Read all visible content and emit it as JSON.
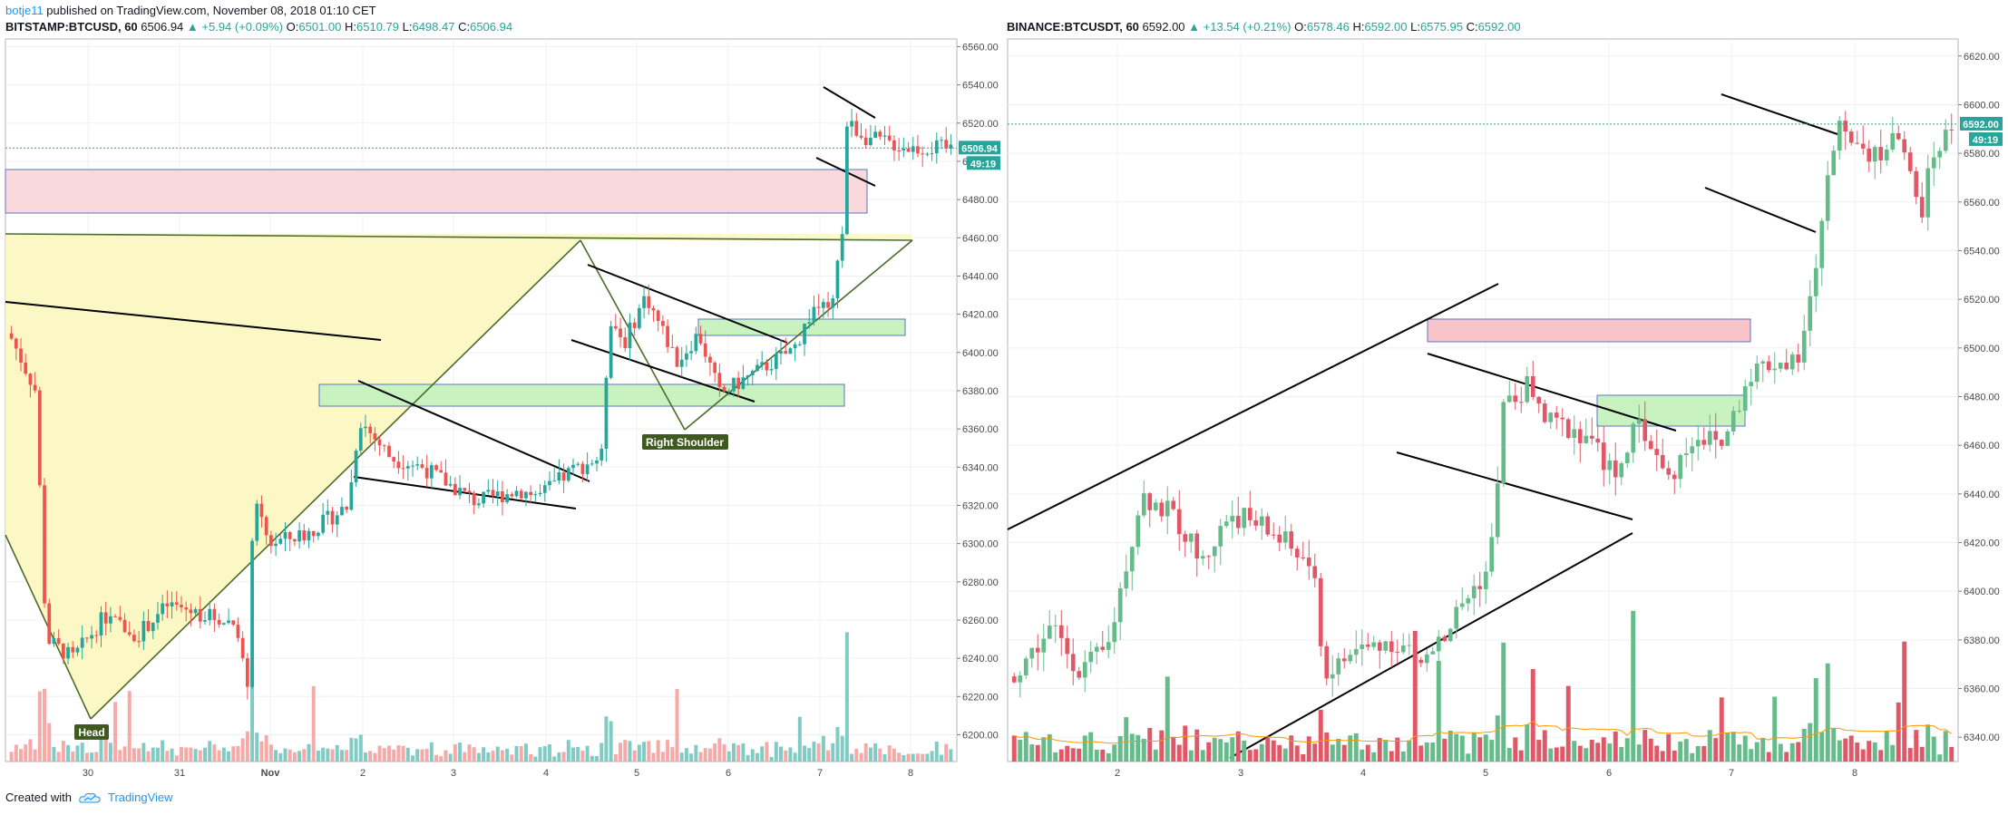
{
  "header": {
    "author": "botje11",
    "published": " published on TradingView.com, November 08, 2018 01:10 CET"
  },
  "left_panel": {
    "symbol": "BITSTAMP:BTCUSD, 60",
    "last": "6506.94",
    "change": "▲ +5.94 (+0.09%)",
    "o_label": "O:",
    "o": "6501.00",
    "h_label": "H:",
    "h": "6510.79",
    "l_label": "L:",
    "l": "6498.47",
    "c_label": "C:",
    "c": "6506.94",
    "price_tag": "6506.94",
    "timer_tag": "49:19"
  },
  "right_panel": {
    "symbol": "BINANCE:BTCUSDT, 60",
    "last": "6592.00",
    "change": "▲ +13.54 (+0.21%)",
    "o_label": "O:",
    "o": "6578.46",
    "h_label": "H:",
    "h": "6592.00",
    "l_label": "L:",
    "l": "6575.95",
    "c_label": "C:",
    "c": "6592.00",
    "price_tag": "6592.00",
    "timer_tag": "49:19"
  },
  "footer": {
    "created_with": "Created with",
    "brand": "TradingView"
  },
  "colors": {
    "up": "#26a69a",
    "down": "#ef5350",
    "vol_up": "#80cbc4",
    "vol_down": "#f7a9a7",
    "right_up": "#66bb8a",
    "right_down": "#e05767"
  },
  "chart_data": [
    {
      "type": "candlestick",
      "symbol": "BITSTAMP:BTCUSD",
      "interval": "60",
      "y_ticks": [
        6200,
        6220,
        6240,
        6260,
        6280,
        6300,
        6320,
        6340,
        6360,
        6380,
        6400,
        6420,
        6440,
        6460,
        6480,
        6500,
        6520,
        6540,
        6560
      ],
      "ylim": [
        6186,
        6564
      ],
      "x_ticks": [
        "30",
        "31",
        "Nov",
        "2",
        "3",
        "4",
        "5",
        "6",
        "7",
        "8"
      ],
      "xlim": [
        29.1,
        8.5
      ],
      "last_price": 6506.94,
      "annotations": [
        "Head",
        "Right Shoulder"
      ],
      "series": [
        {
          "name": "price",
          "anchors": [
            [
              29.1,
              6410
            ],
            [
              29.35,
              6380
            ],
            [
              29.45,
              6250
            ],
            [
              29.7,
              6240
            ],
            [
              30.0,
              6262
            ],
            [
              30.3,
              6252
            ],
            [
              30.6,
              6268
            ],
            [
              31.0,
              6262
            ],
            [
              31.25,
              6258
            ],
            [
              31.35,
              6220
            ],
            [
              31.4,
              6322
            ],
            [
              31.55,
              6300
            ],
            [
              31.9,
              6305
            ],
            [
              32.3,
              6320
            ],
            [
              32.4,
              6365
            ],
            [
              32.7,
              6345
            ],
            [
              33.0,
              6340
            ],
            [
              33.5,
              6322
            ],
            [
              33.9,
              6328
            ],
            [
              34.1,
              6325
            ],
            [
              34.4,
              6338
            ],
            [
              34.7,
              6346
            ],
            [
              34.75,
              6420
            ],
            [
              34.9,
              6405
            ],
            [
              35.1,
              6430
            ],
            [
              35.4,
              6395
            ],
            [
              35.6,
              6410
            ],
            [
              35.8,
              6378
            ],
            [
              36.0,
              6385
            ],
            [
              36.3,
              6395
            ],
            [
              36.5,
              6402
            ],
            [
              36.7,
              6425
            ],
            [
              36.85,
              6420
            ],
            [
              36.95,
              6460
            ],
            [
              37.0,
              6520
            ],
            [
              37.2,
              6512
            ],
            [
              37.6,
              6507
            ],
            [
              38.0,
              6507
            ]
          ]
        },
        {
          "name": "volume"
        }
      ]
    },
    {
      "type": "candlestick",
      "symbol": "BINANCE:BTCUSDT",
      "interval": "60",
      "y_ticks": [
        6340,
        6360,
        6380,
        6400,
        6420,
        6440,
        6460,
        6480,
        6500,
        6520,
        6540,
        6560,
        6580,
        6600,
        6620
      ],
      "ylim": [
        6330,
        6627
      ],
      "x_ticks": [
        "2",
        "3",
        "4",
        "5",
        "6",
        "7",
        "8"
      ],
      "xlim": [
        1.1,
        8.85
      ],
      "last_price": 6592.0,
      "series": [
        {
          "name": "price",
          "anchors": [
            [
              1.1,
              6365
            ],
            [
              1.4,
              6385
            ],
            [
              1.6,
              6368
            ],
            [
              1.8,
              6375
            ],
            [
              2.05,
              6440
            ],
            [
              2.3,
              6430
            ],
            [
              2.5,
              6412
            ],
            [
              2.7,
              6432
            ],
            [
              2.9,
              6428
            ],
            [
              3.1,
              6420
            ],
            [
              3.3,
              6410
            ],
            [
              3.4,
              6365
            ],
            [
              3.6,
              6375
            ],
            [
              3.9,
              6380
            ],
            [
              4.1,
              6370
            ],
            [
              4.25,
              6380
            ],
            [
              4.4,
              6395
            ],
            [
              4.6,
              6410
            ],
            [
              4.7,
              6475
            ],
            [
              4.9,
              6485
            ],
            [
              5.0,
              6470
            ],
            [
              5.3,
              6465
            ],
            [
              5.5,
              6448
            ],
            [
              5.7,
              6470
            ],
            [
              5.9,
              6445
            ],
            [
              6.1,
              6465
            ],
            [
              6.3,
              6460
            ],
            [
              6.5,
              6490
            ],
            [
              6.7,
              6495
            ],
            [
              6.85,
              6492
            ],
            [
              6.95,
              6520
            ],
            [
              7.05,
              6560
            ],
            [
              7.15,
              6595
            ],
            [
              7.4,
              6580
            ],
            [
              7.6,
              6585
            ],
            [
              7.75,
              6555
            ],
            [
              7.85,
              6580
            ],
            [
              8.0,
              6592
            ]
          ]
        },
        {
          "name": "volume"
        }
      ]
    }
  ]
}
